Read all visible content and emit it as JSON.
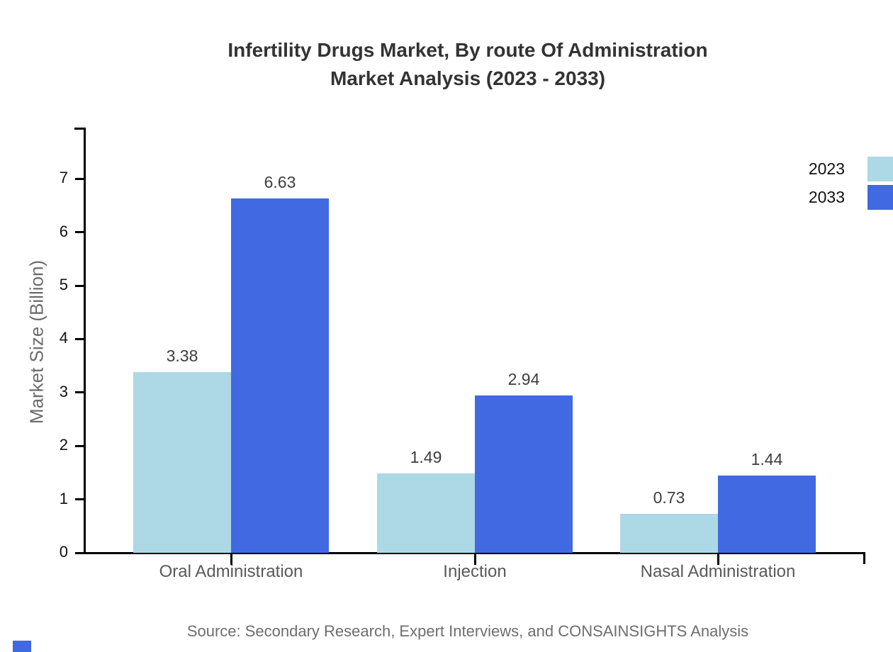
{
  "title": {
    "line1": "Infertility Drugs Market, By route Of Administration",
    "line2": "Market Analysis (2023 - 2033)"
  },
  "chart_data": {
    "type": "bar",
    "categories": [
      "Oral Administration",
      "Injection",
      "Nasal Administration"
    ],
    "series": [
      {
        "name": "2023",
        "color": "#ADD8E6",
        "values": [
          3.38,
          1.49,
          0.73
        ],
        "value_labels": [
          "3.38",
          "1.49",
          "0.73"
        ]
      },
      {
        "name": "2033",
        "color": "#4169E1",
        "values": [
          6.63,
          2.94,
          1.44
        ],
        "value_labels": [
          "6.63",
          "2.94",
          "1.44"
        ]
      }
    ],
    "title": "Infertility Drugs Market, By route Of Administration Market Analysis (2023 - 2033)",
    "xlabel": "",
    "ylabel": "Market Size (Billion)",
    "yticks": [
      0,
      1,
      2,
      3,
      4,
      5,
      6,
      7
    ],
    "ytick_labels": [
      "0",
      "1",
      "2",
      "3",
      "4",
      "5",
      "6",
      "7"
    ],
    "ylim": [
      0,
      7.96
    ],
    "grid": false,
    "legend_position": "top-right"
  },
  "source": "Source: Secondary Research, Expert Interviews, and CONSAINSIGHTS Analysis",
  "colors": {
    "series_2023": "#ADD8E6",
    "series_2033": "#4169E1",
    "axis": "#000000",
    "brand_mark": "#4169E1"
  }
}
